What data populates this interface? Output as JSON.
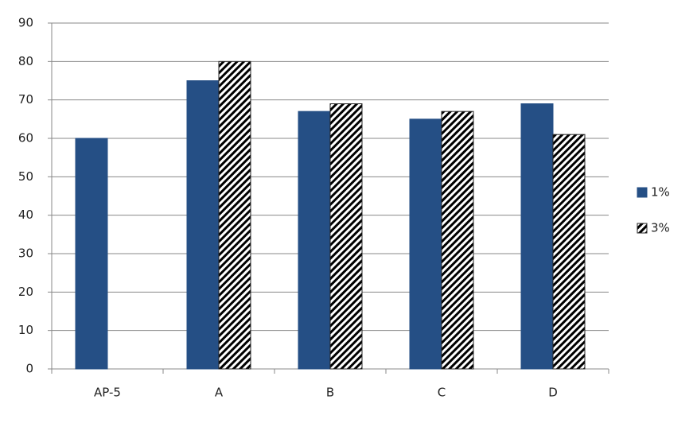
{
  "chart_data": {
    "type": "bar",
    "categories": [
      "AP-5",
      "A",
      "B",
      "C",
      "D"
    ],
    "series": [
      {
        "name": "1%",
        "color": "#254f85",
        "values": [
          60,
          75,
          67,
          65,
          69
        ]
      },
      {
        "name": "3%",
        "color": "#000000",
        "hatch": true,
        "values": [
          null,
          80,
          69,
          67,
          61
        ]
      }
    ],
    "ylim": [
      0,
      90
    ],
    "yticks": [
      0,
      10,
      20,
      30,
      40,
      50,
      60,
      70,
      80,
      90
    ],
    "grid": true,
    "legend": "right"
  }
}
